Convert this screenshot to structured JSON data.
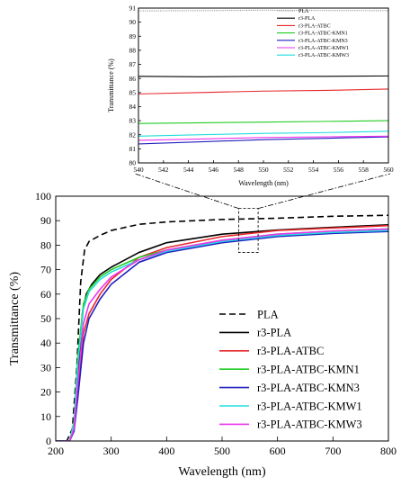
{
  "chart_data": [
    {
      "id": "inset",
      "type": "line",
      "title": "",
      "xlabel": "Wavelength (nm)",
      "ylabel": "Transmittance (%)",
      "xlim": [
        540,
        560
      ],
      "ylim": [
        80,
        91
      ],
      "x_ticks": [
        540,
        542,
        544,
        546,
        548,
        550,
        552,
        554,
        556,
        558,
        560
      ],
      "y_ticks": [
        80,
        81,
        82,
        83,
        84,
        85,
        86,
        87,
        88,
        89,
        90,
        91
      ],
      "legend_position": "top-right",
      "series": [
        {
          "name": "PLA",
          "color": "#999999",
          "dash": "1.2,1.2",
          "x": [
            540,
            545,
            550,
            555,
            560
          ],
          "y": [
            90.8,
            90.82,
            90.85,
            90.83,
            90.82
          ]
        },
        {
          "name": "r3-PLA",
          "color": "#000000",
          "dash": "",
          "x": [
            540,
            545,
            550,
            555,
            560
          ],
          "y": [
            86.15,
            86.12,
            86.15,
            86.15,
            86.18
          ]
        },
        {
          "name": "r3-PLA-ATBC",
          "color": "#e8282b",
          "dash": "",
          "x": [
            540,
            545,
            550,
            555,
            560
          ],
          "y": [
            84.9,
            85.0,
            85.1,
            85.15,
            85.25
          ]
        },
        {
          "name": "r3-PLA-ATBC-KMN1",
          "color": "#22cc22",
          "dash": "",
          "x": [
            540,
            545,
            550,
            555,
            560
          ],
          "y": [
            82.8,
            82.85,
            82.9,
            82.95,
            83.0
          ]
        },
        {
          "name": "r3-PLA-ATBC-KMN3",
          "color": "#1f1fbf",
          "dash": "",
          "x": [
            540,
            545,
            550,
            555,
            560
          ],
          "y": [
            81.35,
            81.5,
            81.65,
            81.75,
            81.85
          ]
        },
        {
          "name": "r3-PLA-ATBC-KMW1",
          "color": "#ee33ee",
          "dash": "",
          "x": [
            540,
            545,
            550,
            555,
            560
          ],
          "y": [
            81.6,
            81.7,
            81.8,
            81.85,
            81.9
          ]
        },
        {
          "name": "r3-PLA-ATBC-KMW3",
          "color": "#22dddd",
          "dash": "",
          "x": [
            540,
            545,
            550,
            555,
            560
          ],
          "y": [
            81.9,
            82.0,
            82.1,
            82.15,
            82.25
          ]
        }
      ]
    },
    {
      "id": "main",
      "type": "line",
      "title": "",
      "xlabel": "Wavelength (nm)",
      "ylabel": "Transmittance (%)",
      "xlim": [
        200,
        800
      ],
      "ylim": [
        0,
        100
      ],
      "x_ticks": [
        200,
        300,
        400,
        500,
        600,
        700,
        800
      ],
      "y_ticks": [
        0,
        10,
        20,
        30,
        40,
        50,
        60,
        70,
        80,
        90,
        100
      ],
      "legend_position": "bottom-right",
      "highlight_region": {
        "xlim": [
          530,
          565
        ],
        "ylim": [
          77,
          95
        ]
      },
      "series": [
        {
          "name": "PLA",
          "color": "#000000",
          "dash": "7,4",
          "x": [
            200,
            220,
            230,
            238,
            245,
            252,
            260,
            280,
            300,
            350,
            400,
            500,
            600,
            700,
            800
          ],
          "y": [
            0,
            0,
            5,
            30,
            65,
            78,
            81.5,
            84,
            86,
            88.5,
            89.5,
            90.5,
            91,
            91.8,
            92.2
          ]
        },
        {
          "name": "r3-PLA",
          "color": "#000000",
          "dash": "",
          "x": [
            200,
            225,
            233,
            240,
            248,
            255,
            265,
            280,
            300,
            350,
            400,
            500,
            600,
            700,
            800
          ],
          "y": [
            0,
            0,
            5,
            25,
            52,
            60,
            64,
            68,
            71,
            77,
            81,
            84.5,
            86.2,
            87.3,
            88.3
          ]
        },
        {
          "name": "r3-PLA-ATBC",
          "color": "#e8282b",
          "dash": "",
          "x": [
            200,
            225,
            233,
            240,
            250,
            260,
            280,
            300,
            350,
            400,
            500,
            600,
            700,
            800
          ],
          "y": [
            0,
            0,
            5,
            20,
            44,
            52,
            60,
            66,
            75,
            79,
            83.5,
            86,
            87,
            88
          ]
        },
        {
          "name": "r3-PLA-ATBC-KMN1",
          "color": "#22cc22",
          "dash": "",
          "x": [
            200,
            225,
            233,
            240,
            250,
            260,
            280,
            300,
            350,
            400,
            500,
            600,
            700,
            800
          ],
          "y": [
            0,
            0,
            8,
            35,
            56,
            62,
            67,
            70,
            75,
            78,
            82,
            84.5,
            85.8,
            86.6
          ]
        },
        {
          "name": "r3-PLA-ATBC-KMN3",
          "color": "#1f1fbf",
          "dash": "",
          "x": [
            200,
            225,
            233,
            240,
            250,
            260,
            280,
            300,
            350,
            400,
            500,
            600,
            700,
            800
          ],
          "y": [
            0,
            0,
            4,
            18,
            40,
            50,
            58,
            64,
            73,
            77,
            81,
            83.5,
            84.8,
            85.6
          ]
        },
        {
          "name": "r3-PLA-ATBC-KMW1",
          "color": "#22dddd",
          "dash": "",
          "x": [
            200,
            225,
            233,
            240,
            250,
            260,
            280,
            300,
            350,
            400,
            500,
            600,
            700,
            800
          ],
          "y": [
            0,
            0,
            7,
            32,
            54,
            61,
            66,
            69,
            74,
            77.5,
            81.5,
            84,
            85.2,
            86
          ]
        },
        {
          "name": "r3-PLA-ATBC-KMW3",
          "color": "#ee33ee",
          "dash": "",
          "x": [
            200,
            225,
            233,
            240,
            250,
            260,
            280,
            300,
            350,
            400,
            500,
            600,
            700,
            800
          ],
          "y": [
            0,
            0,
            5,
            24,
            48,
            56,
            62,
            67,
            74,
            78,
            82,
            84.5,
            85.8,
            86.6
          ]
        }
      ]
    }
  ]
}
